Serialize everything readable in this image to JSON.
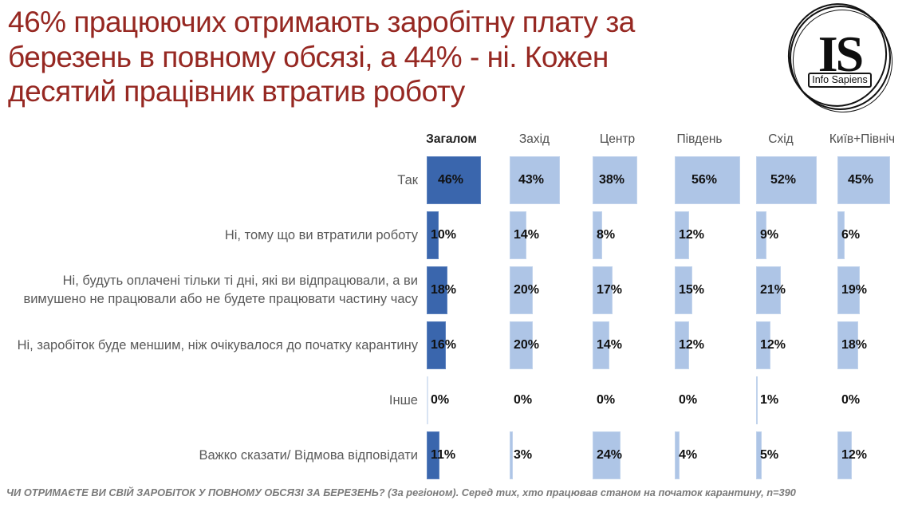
{
  "title": {
    "lines": [
      "46% працюючих отримають заробітну плату за",
      "березень в повному обсязі, а 44% - ні. Кожен",
      "десятий працівник втратив роботу"
    ]
  },
  "logo": {
    "monogram": "IS",
    "name": "Info Sapiens"
  },
  "chart_data": {
    "type": "bar",
    "orientation": "horizontal",
    "unit": "%",
    "legend_position": "none",
    "grid": false,
    "xlim": [
      0,
      60
    ],
    "columns": [
      "Загалом",
      "Захід",
      "Центр",
      "Південь",
      "Схід",
      "Київ+Північ"
    ],
    "highlight_column": "Загалом",
    "rows": [
      {
        "label": "Так",
        "values": [
          46,
          43,
          38,
          56,
          52,
          45
        ]
      },
      {
        "label": "Ні, тому що ви втратили роботу",
        "values": [
          10,
          14,
          8,
          12,
          9,
          6
        ]
      },
      {
        "label": "Ні, будуть оплачені тільки ті дні, які ви відпрацювали, а ви вимушено не працювали або не будете працювати частину часу",
        "values": [
          18,
          20,
          17,
          15,
          21,
          19
        ]
      },
      {
        "label": "Ні, заробіток буде меншим, ніж очікувалося до початку карантину",
        "values": [
          16,
          20,
          14,
          12,
          12,
          18
        ]
      },
      {
        "label": "Інше",
        "values": [
          0,
          0,
          0,
          0,
          1,
          0
        ]
      },
      {
        "label": "Важко сказати/ Відмова відповідати",
        "values": [
          11,
          3,
          24,
          4,
          5,
          12
        ]
      }
    ],
    "colors": {
      "highlight": "#3a66ad",
      "regular": "#aec5e6",
      "zero_tick": "#d9e4f3"
    },
    "title_color": "#962822"
  },
  "footnote": "ЧИ ОТРИМАЄТЕ ВИ СВІЙ ЗАРОБІТОК У ПОВНОМУ ОБСЯЗІ ЗА БЕРЕЗЕНЬ? (За регіоном). Серед тих, хто працював станом на початок карантину, n=390"
}
